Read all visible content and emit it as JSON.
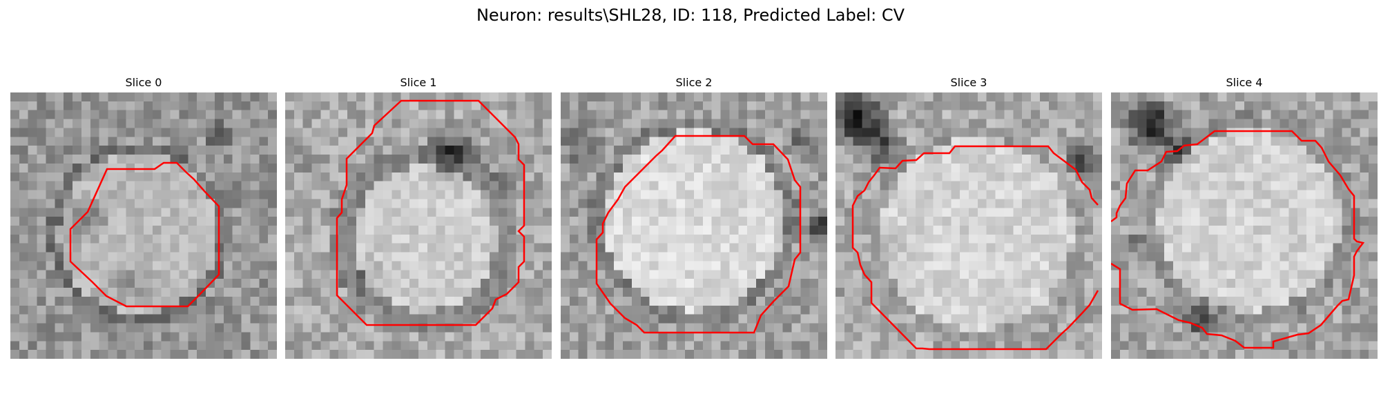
{
  "figure": {
    "title": "Neuron: results\\SHL28, ID: 118, Predicted Label: CV",
    "contour_color": "#ff0000"
  },
  "panels": [
    {
      "title": "Slice 0"
    },
    {
      "title": "Slice 1"
    },
    {
      "title": "Slice 2"
    },
    {
      "title": "Slice 3"
    },
    {
      "title": "Slice 4"
    }
  ]
}
